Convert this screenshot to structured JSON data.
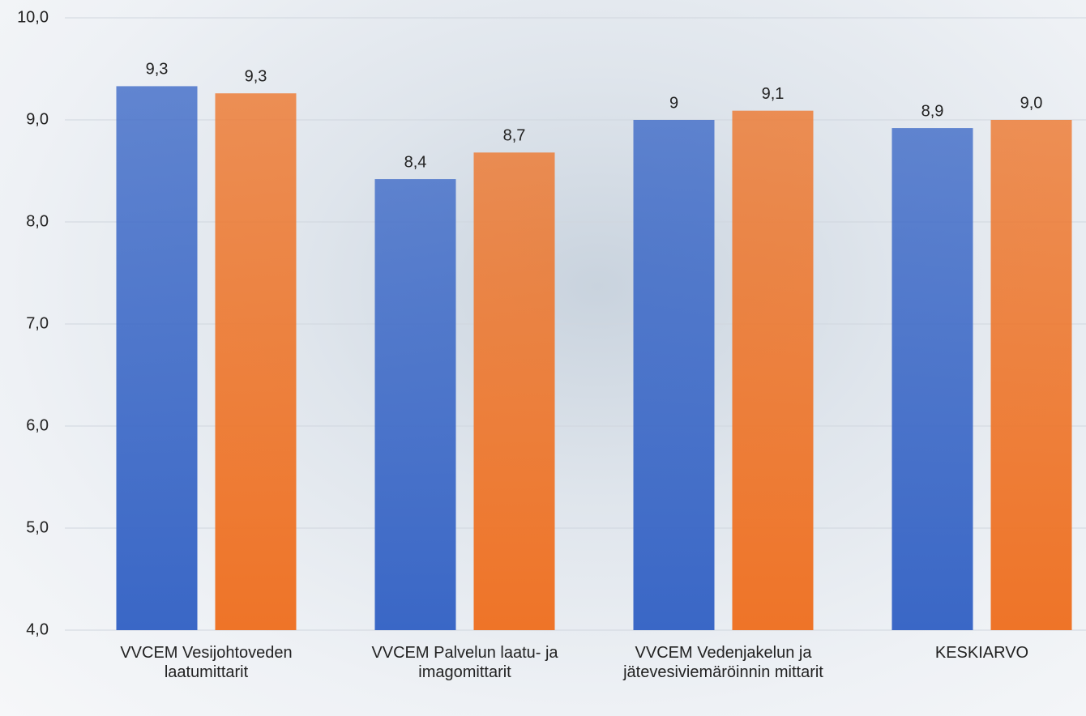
{
  "chart_data": {
    "type": "bar",
    "categories": [
      "VVCEM Vesijohtoveden laatumittarit",
      "VVCEM Palvelun laatu- ja imagomittarit",
      "VVCEM Vedenjakelun ja jätevesiviemäröinnin mittarit",
      "KESKIARVO"
    ],
    "series": [
      {
        "color": "#3a67c6",
        "values": [
          9.33,
          8.42,
          9,
          8.92
        ],
        "value_labels": [
          "9,3",
          "8,4",
          "9",
          "8,9"
        ]
      },
      {
        "color": "#ee7428",
        "values": [
          9.26,
          8.68,
          9.09,
          9.0
        ],
        "value_labels": [
          "9,3",
          "8,7",
          "9,1",
          "9,0"
        ]
      }
    ],
    "ylim": [
      4,
      10
    ],
    "yticks": [
      {
        "value": 4,
        "label": "4,0"
      },
      {
        "value": 5,
        "label": "5,0"
      },
      {
        "value": 6,
        "label": "6,0"
      },
      {
        "value": 7,
        "label": "7,0"
      },
      {
        "value": 8,
        "label": "8,0"
      },
      {
        "value": 9,
        "label": "9,0"
      },
      {
        "value": 10,
        "label": "10,0"
      }
    ],
    "grid": true
  }
}
